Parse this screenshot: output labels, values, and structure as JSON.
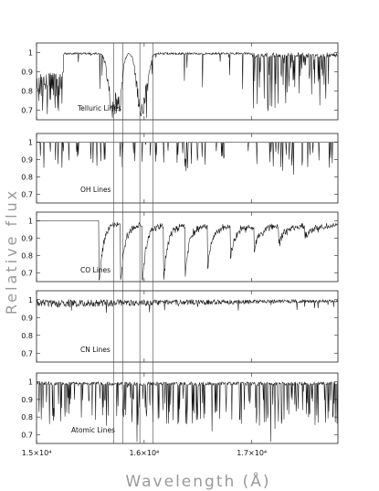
{
  "chart_data": {
    "type": "line",
    "xlabel": "Wavelength (Å)",
    "ylabel": "Relative flux",
    "xlim": [
      15000,
      17800
    ],
    "x_ticks": [
      {
        "value": 15000,
        "label": "1.5×10⁴"
      },
      {
        "value": 16000,
        "label": "1.6×10⁴"
      },
      {
        "value": 17000,
        "label": "1.7×10⁴"
      }
    ],
    "ylim": [
      0.65,
      1.05
    ],
    "y_ticks": [
      {
        "value": 1.0,
        "label": "1"
      },
      {
        "value": 0.9,
        "label": "0.9"
      },
      {
        "value": 0.8,
        "label": "0.8"
      },
      {
        "value": 0.7,
        "label": "0.7"
      }
    ],
    "reference_lines_x": [
      15715,
      15800,
      15960,
      16080
    ],
    "panels": [
      {
        "name": "Telluric Lines"
      },
      {
        "name": "OH Lines"
      },
      {
        "name": "CO Lines"
      },
      {
        "name": "CN Lines"
      },
      {
        "name": "Atomic Lines"
      }
    ],
    "telluric_bands": [
      {
        "center": 15700,
        "width": 50,
        "depth": 0.33
      },
      {
        "center": 15770,
        "width": 40,
        "depth": 0.28
      },
      {
        "center": 15960,
        "width": 45,
        "depth": 0.33
      },
      {
        "center": 16020,
        "width": 40,
        "depth": 0.2
      }
    ],
    "co_bandheads": [
      15580,
      15780,
      15980,
      16180,
      16380,
      16590,
      16800,
      17020,
      17250,
      17490
    ],
    "co_bandhead_depths": [
      0.38,
      0.35,
      0.36,
      0.3,
      0.26,
      0.22,
      0.18,
      0.13,
      0.09,
      0.05
    ]
  }
}
